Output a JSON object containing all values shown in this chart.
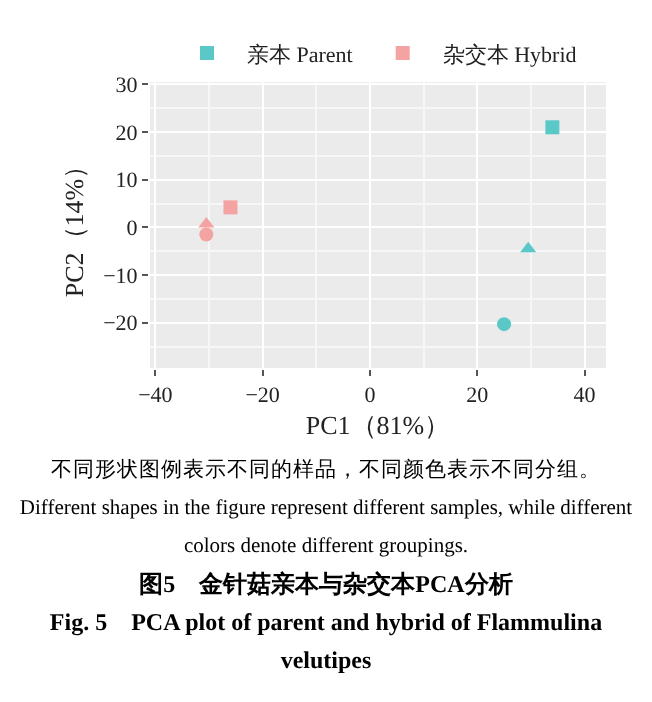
{
  "chart_data": {
    "type": "scatter",
    "title": "图5　金针菇亲本与杂交本PCA分析",
    "subtitle": "Fig. 5　PCA plot of parent and hybrid of Flammulina velutipes",
    "xlabel": "PC1（81%）",
    "ylabel": "PC2（14%）",
    "annotations": [
      "不同形状图例表示不同的样品，不同颜色表示不同分组。",
      "Different shapes in the figure represent different samples, while different colors denote different groupings."
    ],
    "series": [
      {
        "name": "亲本 Parent",
        "color": "#5bc8c8",
        "x": [
          34,
          29.5,
          25
        ],
        "values": [
          21,
          -4.5,
          -20.3
        ],
        "marker": [
          "square",
          "triangle",
          "circle"
        ]
      },
      {
        "name": "杂交本 Hybrid",
        "color": "#f4a3a3",
        "x": [
          -26,
          -30.5,
          -30.5
        ],
        "values": [
          4.2,
          0.7,
          -1.5
        ],
        "marker": [
          "square",
          "triangle",
          "circle"
        ]
      }
    ],
    "xlim": [
      -41,
      44
    ],
    "xticks": [
      -40,
      -20,
      0,
      20,
      40
    ],
    "ylim": [
      -29.5,
      30.5
    ],
    "yticks": [
      -20,
      -10,
      0,
      10,
      20,
      30
    ],
    "grid": true,
    "legend": "top"
  }
}
